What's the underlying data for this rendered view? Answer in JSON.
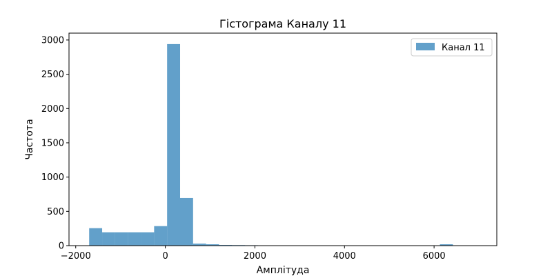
{
  "chart_data": {
    "type": "bar",
    "title": "Гістограма Каналу 11",
    "xlabel": "Амплітуда",
    "ylabel": "Частота",
    "xlim": [
      -2150,
      7400
    ],
    "ylim": [
      0,
      3100
    ],
    "x_ticks": [
      -2000,
      0,
      2000,
      4000,
      6000
    ],
    "x_tick_labels": [
      "−2000",
      "0",
      "2000",
      "4000",
      "6000"
    ],
    "y_ticks": [
      0,
      500,
      1000,
      1500,
      2000,
      2500,
      3000
    ],
    "y_tick_labels": [
      "0",
      "500",
      "1000",
      "1500",
      "2000",
      "2500",
      "3000"
    ],
    "legend": {
      "position": "top-right",
      "label": "Канал 11"
    },
    "grid": false,
    "colors": {
      "bar": "#1f77b4",
      "bar_opacity": 0.7
    },
    "bins": {
      "start": -1700,
      "width": 290,
      "count": 30
    },
    "values": [
      255,
      195,
      195,
      195,
      195,
      285,
      2940,
      695,
      30,
      20,
      10,
      8,
      6,
      5,
      5,
      4,
      4,
      3,
      3,
      3,
      3,
      2,
      2,
      2,
      2,
      2,
      2,
      20,
      5,
      3
    ]
  }
}
